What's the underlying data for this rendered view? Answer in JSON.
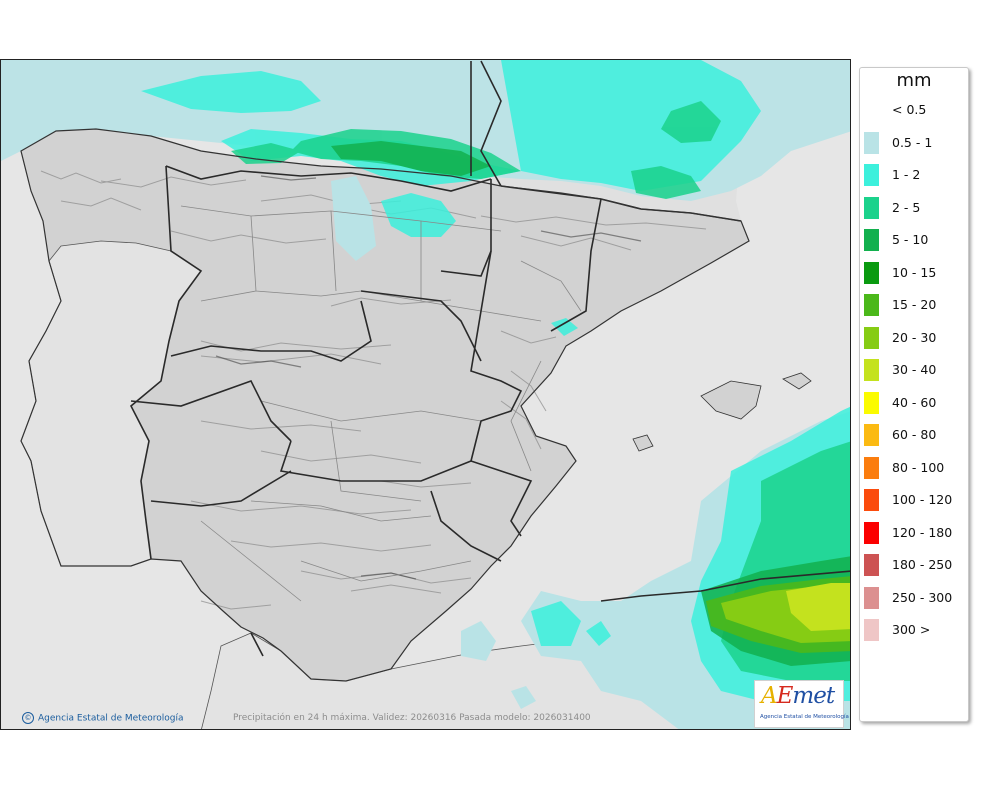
{
  "legend": {
    "unit": "mm",
    "classes": [
      {
        "label": "< 0.5",
        "color": "#ffffff"
      },
      {
        "label": "0.5 - 1",
        "color": "#b9e3e6"
      },
      {
        "label": "1 - 2",
        "color": "#3cf0dc"
      },
      {
        "label": "2 - 5",
        "color": "#1bd28c"
      },
      {
        "label": "5 - 10",
        "color": "#12b04e"
      },
      {
        "label": "10 - 15",
        "color": "#0a9a10"
      },
      {
        "label": "15 - 20",
        "color": "#4bb81a"
      },
      {
        "label": "20 - 30",
        "color": "#86cc14"
      },
      {
        "label": "30 - 40",
        "color": "#c4e21e"
      },
      {
        "label": "40 - 60",
        "color": "#fbfb00"
      },
      {
        "label": "60 - 80",
        "color": "#fbba12"
      },
      {
        "label": "80 - 100",
        "color": "#fb7d0e"
      },
      {
        "label": "100 - 120",
        "color": "#fb4b0c"
      },
      {
        "label": "120 - 180",
        "color": "#fb0000"
      },
      {
        "label": "180 - 250",
        "color": "#cd5353"
      },
      {
        "label": "250 - 300",
        "color": "#dc9090"
      },
      {
        "label": "300 >",
        "color": "#efc6c6"
      }
    ]
  },
  "map": {
    "credit": "Agencia Estatal de Meteorología",
    "caption": "Precipitación en 24 h máxima. Validez: 20260316 Pasada modelo: 2026031400"
  },
  "logo": {
    "letter_a": "A",
    "letter_e": "E",
    "letters_rest": "met",
    "subtitle": "Agencia Estatal de Meteorología"
  }
}
